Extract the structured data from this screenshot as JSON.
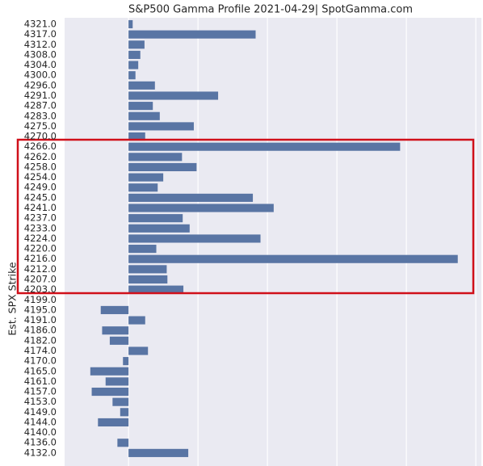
{
  "chart_data": {
    "type": "barh",
    "title": "S&P500 Gamma Profile 2021-04-29| SpotGamma.com",
    "ylabel": "Est. SPX Strike",
    "categories": [
      "4321.0",
      "4317.0",
      "4312.0",
      "4308.0",
      "4304.0",
      "4300.0",
      "4296.0",
      "4291.0",
      "4287.0",
      "4283.0",
      "4275.0",
      "4270.0",
      "4266.0",
      "4262.0",
      "4258.0",
      "4254.0",
      "4249.0",
      "4245.0",
      "4241.0",
      "4237.0",
      "4233.0",
      "4224.0",
      "4220.0",
      "4216.0",
      "4212.0",
      "4207.0",
      "4203.0",
      "4199.0",
      "4195.0",
      "4191.0",
      "4186.0",
      "4182.0",
      "4174.0",
      "4170.0",
      "4165.0",
      "4161.0",
      "4157.0",
      "4153.0",
      "4149.0",
      "4144.0",
      "4140.0",
      "4136.0",
      "4132.0"
    ],
    "values": [
      0.06,
      1.83,
      0.23,
      0.17,
      0.14,
      0.1,
      0.38,
      1.29,
      0.35,
      0.45,
      0.94,
      0.24,
      3.91,
      0.77,
      0.98,
      0.5,
      0.42,
      1.79,
      2.09,
      0.78,
      0.88,
      1.9,
      0.4,
      4.74,
      0.55,
      0.56,
      0.79,
      0,
      -0.4,
      0.24,
      -0.38,
      -0.27,
      0.28,
      -0.08,
      -0.55,
      -0.33,
      -0.53,
      -0.23,
      -0.12,
      -0.44,
      0,
      -0.16,
      0.86
    ],
    "color": "#5975a4",
    "xlim": [
      -0.92,
      5.08
    ],
    "xticks": [
      0,
      1,
      2,
      3,
      4,
      5
    ],
    "grid": true
  }
}
